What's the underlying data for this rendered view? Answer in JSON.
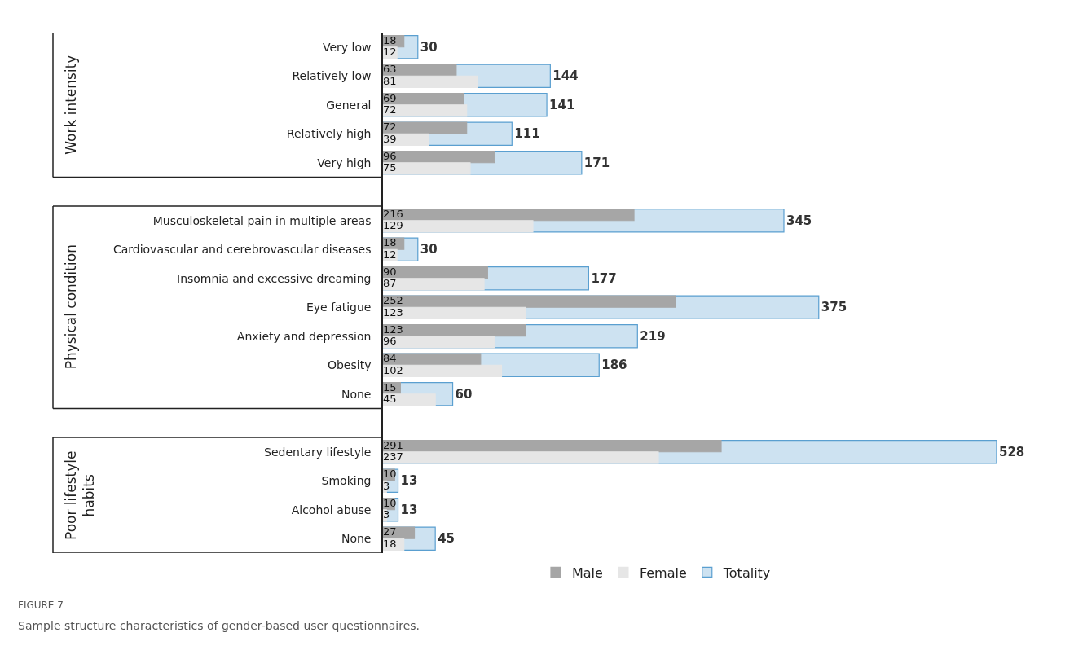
{
  "chart_data": {
    "type": "bar",
    "orientation": "horizontal",
    "data_labels": true,
    "legend": "bottom",
    "categories": [
      "Very low",
      "Relatively low",
      "General",
      "Relatively high",
      "Very high",
      null,
      "Musculoskeletal pain in multiple areas",
      "Cardiovascular and cerebrovascular diseases",
      "Insomnia and excessive dreaming",
      "Eye fatigue",
      "Anxiety and depression",
      "Obesity",
      "None",
      null,
      "Sedentary lifestyle",
      "Smoking",
      "Alcohol abuse",
      "None"
    ],
    "series": [
      {
        "name": "Male",
        "color": "#a6a6a6",
        "values": [
          18,
          63,
          69,
          72,
          96,
          null,
          216,
          18,
          90,
          252,
          123,
          84,
          15,
          null,
          291,
          10,
          10,
          27
        ]
      },
      {
        "name": "Female",
        "color": "#e6e6e6",
        "values": [
          12,
          81,
          72,
          39,
          75,
          null,
          129,
          12,
          87,
          123,
          96,
          102,
          45,
          null,
          237,
          3,
          3,
          18
        ]
      },
      {
        "name": "Totality",
        "color": "#5a9fd0",
        "values": [
          30,
          144,
          141,
          111,
          171,
          null,
          345,
          30,
          177,
          375,
          219,
          186,
          60,
          null,
          528,
          13,
          13,
          45
        ]
      }
    ],
    "annotations": [
      "Work intensity",
      "Physical condition",
      "Poor lifestyle habits",
      "FIGURE 7",
      "Sample structure characteristics of gender-based user questionnaires."
    ]
  }
}
